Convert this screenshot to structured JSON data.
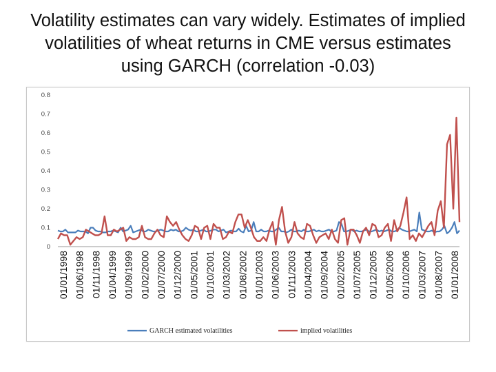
{
  "title": "Volatility estimates can vary widely. Estimates of implied volatilities of wheat returns in  CME versus estimates using GARCH (correlation -0.03)",
  "chart_data": {
    "type": "line",
    "title": "",
    "xlabel": "",
    "ylabel": "",
    "ylim": [
      0,
      0.8
    ],
    "y_ticks": [
      0,
      0.1,
      0.2,
      0.3,
      0.4,
      0.5,
      0.6,
      0.7,
      0.8
    ],
    "y_tick_labels": [
      "0",
      "0.1",
      "0.2",
      "0.3",
      "0.4",
      "0.5",
      "0.6",
      "0.7",
      "0.8"
    ],
    "x_tick_labels": [
      "01/01/1998",
      "01/06/1998",
      "01/11/1998",
      "01/04/1999",
      "01/09/1999",
      "01/02/2000",
      "01/07/2000",
      "01/12/2000",
      "01/05/2001",
      "01/10/2001",
      "01/03/2002",
      "01/08/2002",
      "01/01/2003",
      "01/06/2003",
      "01/11/2003",
      "01/04/2004",
      "01/09/2004",
      "01/02/2005",
      "01/07/2005",
      "01/12/2005",
      "01/05/2006",
      "01/10/2006",
      "01/03/2007",
      "01/08/2007",
      "01/01/2008"
    ],
    "grid": false,
    "legend_position": "bottom",
    "series": [
      {
        "name": "GARCH estimated volatilities",
        "color": "#4a7ebb",
        "values": [
          0.085,
          0.08,
          0.08,
          0.09,
          0.075,
          0.075,
          0.075,
          0.075,
          0.085,
          0.08,
          0.08,
          0.08,
          0.07,
          0.1,
          0.1,
          0.085,
          0.08,
          0.08,
          0.075,
          0.075,
          0.08,
          0.08,
          0.085,
          0.08,
          0.075,
          0.1,
          0.08,
          0.085,
          0.09,
          0.11,
          0.075,
          0.08,
          0.085,
          0.09,
          0.08,
          0.08,
          0.09,
          0.085,
          0.08,
          0.08,
          0.085,
          0.09,
          0.085,
          0.08,
          0.08,
          0.09,
          0.085,
          0.09,
          0.08,
          0.08,
          0.085,
          0.1,
          0.09,
          0.085,
          0.09,
          0.08,
          0.08,
          0.085,
          0.09,
          0.08,
          0.08,
          0.085,
          0.09,
          0.09,
          0.08,
          0.085,
          0.09,
          0.075,
          0.08,
          0.085,
          0.08,
          0.08,
          0.095,
          0.08,
          0.075,
          0.11,
          0.08,
          0.085,
          0.13,
          0.08,
          0.08,
          0.09,
          0.08,
          0.08,
          0.085,
          0.08,
          0.08,
          0.09,
          0.1,
          0.08,
          0.08,
          0.075,
          0.08,
          0.09,
          0.08,
          0.08,
          0.085,
          0.08,
          0.09,
          0.08,
          0.08,
          0.085,
          0.09,
          0.08,
          0.085,
          0.08,
          0.08,
          0.085,
          0.09,
          0.08,
          0.08,
          0.085,
          0.13,
          0.12,
          0.08,
          0.08,
          0.085,
          0.09,
          0.08,
          0.085,
          0.08,
          0.08,
          0.085,
          0.09,
          0.08,
          0.08,
          0.085,
          0.09,
          0.08,
          0.085,
          0.08,
          0.085,
          0.09,
          0.08,
          0.08,
          0.085,
          0.1,
          0.09,
          0.085,
          0.08,
          0.08,
          0.085,
          0.09,
          0.08,
          0.18,
          0.09,
          0.085,
          0.08,
          0.08,
          0.085,
          0.075,
          0.08,
          0.08,
          0.09,
          0.11,
          0.07,
          0.08,
          0.1,
          0.13,
          0.07,
          0.085
        ]
      },
      {
        "name": "implied volatilities",
        "color": "#c0504d",
        "values": [
          0.04,
          0.07,
          0.06,
          0.06,
          0.01,
          0.03,
          0.05,
          0.04,
          0.05,
          0.09,
          0.08,
          0.07,
          0.06,
          0.06,
          0.07,
          0.16,
          0.06,
          0.06,
          0.09,
          0.08,
          0.09,
          0.1,
          0.03,
          0.05,
          0.04,
          0.04,
          0.05,
          0.11,
          0.05,
          0.04,
          0.04,
          0.07,
          0.09,
          0.06,
          0.05,
          0.16,
          0.13,
          0.11,
          0.13,
          0.09,
          0.06,
          0.04,
          0.03,
          0.06,
          0.11,
          0.1,
          0.04,
          0.1,
          0.11,
          0.04,
          0.12,
          0.1,
          0.1,
          0.04,
          0.05,
          0.08,
          0.07,
          0.13,
          0.17,
          0.17,
          0.1,
          0.14,
          0.1,
          0.05,
          0.03,
          0.03,
          0.05,
          0.03,
          0.09,
          0.13,
          0.01,
          0.14,
          0.21,
          0.08,
          0.02,
          0.05,
          0.13,
          0.07,
          0.05,
          0.04,
          0.12,
          0.11,
          0.06,
          0.02,
          0.05,
          0.06,
          0.07,
          0.04,
          0.09,
          0.04,
          0.02,
          0.14,
          0.15,
          0.01,
          0.09,
          0.09,
          0.06,
          0.02,
          0.08,
          0.1,
          0.06,
          0.12,
          0.11,
          0.05,
          0.06,
          0.1,
          0.12,
          0.03,
          0.14,
          0.08,
          0.11,
          0.18,
          0.26,
          0.04,
          0.06,
          0.03,
          0.07,
          0.05,
          0.08,
          0.11,
          0.13,
          0.06,
          0.19,
          0.24,
          0.1,
          0.54,
          0.59,
          0.2,
          0.68,
          0.13
        ]
      }
    ]
  }
}
